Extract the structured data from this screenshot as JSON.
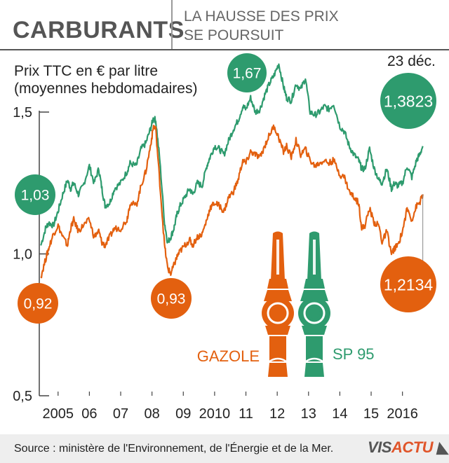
{
  "header": {
    "title": "CARBURANTS",
    "subtitle_line1": "LA HAUSSE DES PRIX",
    "subtitle_line2": "SE POURSUIT"
  },
  "footer": {
    "source": "Source : ministère de l'Environnement, de l'Énergie et de la Mer.",
    "logo_part1": "VIS",
    "logo_part2": "ACTU"
  },
  "colors": {
    "gazole": "#e3600f",
    "sp95": "#2e9b6e",
    "axis": "#444444",
    "text": "#222222"
  },
  "chart_data": {
    "type": "line",
    "ylabel_line1": "Prix TTC en € par litre",
    "ylabel_line2": "(moyennes hebdomadaires)",
    "date_label": "23 déc.",
    "ylim": [
      0.5,
      1.5
    ],
    "xlim": [
      2004.7,
      2016.98
    ],
    "yticks": [
      {
        "value": 0.5,
        "label": "0,5"
      },
      {
        "value": 1.0,
        "label": "1,0"
      },
      {
        "value": 1.5,
        "label": "1,5"
      }
    ],
    "xticks": [
      {
        "value": 2005.3,
        "label": "2005"
      },
      {
        "value": 2006.3,
        "label": "06"
      },
      {
        "value": 2007.3,
        "label": "07"
      },
      {
        "value": 2008.3,
        "label": "08"
      },
      {
        "value": 2009.3,
        "label": "09"
      },
      {
        "value": 2010.3,
        "label": "2010"
      },
      {
        "value": 2011.3,
        "label": "11"
      },
      {
        "value": 2012.3,
        "label": "12"
      },
      {
        "value": 2013.3,
        "label": "13"
      },
      {
        "value": 2014.3,
        "label": "14"
      },
      {
        "value": 2015.3,
        "label": "15"
      },
      {
        "value": 2016.3,
        "label": "2016"
      }
    ],
    "legend": [
      "GAZOLE",
      "SP 95"
    ],
    "series": [
      {
        "name": "SP 95",
        "color": "#2e9b6e",
        "x": [
          2004.75,
          2004.9,
          2005.0,
          2005.15,
          2005.3,
          2005.45,
          2005.6,
          2005.7,
          2005.8,
          2005.95,
          2006.1,
          2006.3,
          2006.45,
          2006.6,
          2006.7,
          2006.8,
          2006.95,
          2007.1,
          2007.3,
          2007.5,
          2007.6,
          2007.8,
          2007.95,
          2008.1,
          2008.25,
          2008.35,
          2008.42,
          2008.55,
          2008.7,
          2008.8,
          2008.9,
          2009.0,
          2009.1,
          2009.2,
          2009.35,
          2009.5,
          2009.6,
          2009.75,
          2009.9,
          2010.05,
          2010.15,
          2010.3,
          2010.45,
          2010.6,
          2010.75,
          2010.9,
          2011.05,
          2011.2,
          2011.3,
          2011.45,
          2011.6,
          2011.75,
          2011.9,
          2012.05,
          2012.2,
          2012.35,
          2012.5,
          2012.6,
          2012.75,
          2012.9,
          2013.05,
          2013.2,
          2013.35,
          2013.5,
          2013.65,
          2013.8,
          2013.95,
          2014.1,
          2014.3,
          2014.45,
          2014.6,
          2014.75,
          2014.9,
          2015.0,
          2015.1,
          2015.25,
          2015.4,
          2015.55,
          2015.65,
          2015.8,
          2015.95,
          2016.05,
          2016.15,
          2016.3,
          2016.45,
          2016.6,
          2016.75,
          2016.85,
          2016.95
        ],
        "values": [
          1.03,
          1.09,
          1.11,
          1.1,
          1.15,
          1.21,
          1.26,
          1.23,
          1.25,
          1.21,
          1.24,
          1.31,
          1.25,
          1.3,
          1.23,
          1.17,
          1.18,
          1.23,
          1.25,
          1.29,
          1.32,
          1.31,
          1.37,
          1.39,
          1.44,
          1.48,
          1.47,
          1.33,
          1.11,
          1.04,
          1.06,
          1.09,
          1.14,
          1.17,
          1.2,
          1.23,
          1.21,
          1.25,
          1.24,
          1.31,
          1.34,
          1.38,
          1.37,
          1.35,
          1.4,
          1.44,
          1.47,
          1.52,
          1.51,
          1.55,
          1.5,
          1.51,
          1.56,
          1.6,
          1.63,
          1.67,
          1.59,
          1.55,
          1.54,
          1.6,
          1.58,
          1.62,
          1.5,
          1.49,
          1.5,
          1.52,
          1.51,
          1.53,
          1.45,
          1.43,
          1.38,
          1.35,
          1.33,
          1.3,
          1.3,
          1.37,
          1.3,
          1.26,
          1.25,
          1.3,
          1.23,
          1.25,
          1.24,
          1.25,
          1.31,
          1.27,
          1.33,
          1.35,
          1.38
        ]
      },
      {
        "name": "GAZOLE",
        "color": "#e3600f",
        "x": [
          2004.75,
          2004.9,
          2005.0,
          2005.15,
          2005.3,
          2005.45,
          2005.6,
          2005.7,
          2005.8,
          2005.95,
          2006.1,
          2006.3,
          2006.45,
          2006.6,
          2006.7,
          2006.8,
          2006.95,
          2007.1,
          2007.3,
          2007.5,
          2007.6,
          2007.8,
          2007.95,
          2008.1,
          2008.25,
          2008.35,
          2008.42,
          2008.55,
          2008.7,
          2008.8,
          2008.9,
          2009.0,
          2009.1,
          2009.2,
          2009.35,
          2009.5,
          2009.6,
          2009.75,
          2009.9,
          2010.05,
          2010.15,
          2010.3,
          2010.45,
          2010.6,
          2010.75,
          2010.9,
          2011.05,
          2011.2,
          2011.3,
          2011.45,
          2011.6,
          2011.75,
          2011.9,
          2012.05,
          2012.2,
          2012.35,
          2012.5,
          2012.6,
          2012.75,
          2012.9,
          2013.05,
          2013.2,
          2013.35,
          2013.5,
          2013.65,
          2013.8,
          2013.95,
          2014.1,
          2014.3,
          2014.45,
          2014.6,
          2014.75,
          2014.9,
          2015.0,
          2015.1,
          2015.25,
          2015.4,
          2015.55,
          2015.65,
          2015.8,
          2015.95,
          2016.05,
          2016.15,
          2016.3,
          2016.45,
          2016.6,
          2016.75,
          2016.85,
          2016.95
        ],
        "values": [
          0.92,
          0.98,
          1.02,
          1.07,
          1.1,
          1.06,
          1.03,
          1.09,
          1.12,
          1.08,
          1.1,
          1.12,
          1.06,
          1.08,
          1.04,
          1.03,
          1.06,
          1.09,
          1.09,
          1.12,
          1.18,
          1.17,
          1.24,
          1.29,
          1.38,
          1.45,
          1.44,
          1.25,
          1.03,
          0.95,
          0.93,
          0.96,
          0.99,
          1.01,
          1.03,
          1.05,
          1.03,
          1.06,
          1.07,
          1.12,
          1.16,
          1.18,
          1.17,
          1.15,
          1.2,
          1.22,
          1.26,
          1.33,
          1.32,
          1.36,
          1.35,
          1.34,
          1.38,
          1.42,
          1.45,
          1.41,
          1.36,
          1.38,
          1.34,
          1.4,
          1.35,
          1.37,
          1.33,
          1.31,
          1.32,
          1.33,
          1.32,
          1.33,
          1.28,
          1.27,
          1.22,
          1.2,
          1.18,
          1.09,
          1.1,
          1.16,
          1.11,
          1.1,
          1.04,
          1.08,
          1.0,
          1.02,
          1.03,
          1.08,
          1.16,
          1.12,
          1.17,
          1.18,
          1.21
        ]
      }
    ],
    "annotations": [
      {
        "label": "1,03",
        "series": "SP 95",
        "x": 2004.75,
        "value": 1.03
      },
      {
        "label": "1,67",
        "series": "SP 95",
        "x": 2011.0,
        "value": 1.67
      },
      {
        "label": "1,3823",
        "series": "SP 95",
        "x": 2016.98,
        "value": 1.3823
      },
      {
        "label": "0,92",
        "series": "GAZOLE",
        "x": 2004.75,
        "value": 0.92
      },
      {
        "label": "0,93",
        "series": "GAZOLE",
        "x": 2008.9,
        "value": 0.93
      },
      {
        "label": "1,2134",
        "series": "GAZOLE",
        "x": 2016.98,
        "value": 1.2134
      }
    ]
  }
}
